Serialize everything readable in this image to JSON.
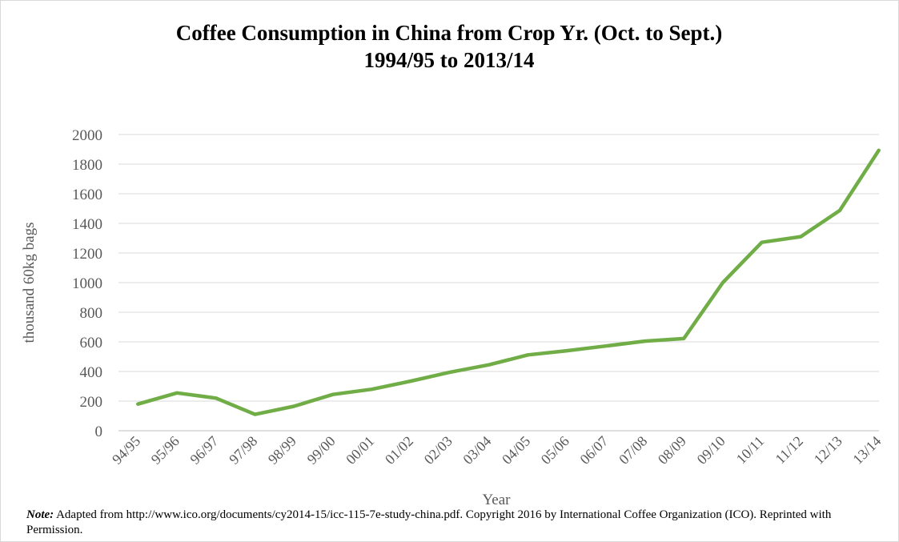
{
  "chart_data": {
    "type": "line",
    "title": "Coffee Consumption in China from Crop Yr. (Oct. to Sept.)",
    "subtitle": "1994/95 to 2013/14",
    "x_label": "Year",
    "y_label": "thousand 60kg bags",
    "categories": [
      "94/95",
      "95/96",
      "96/97",
      "97/98",
      "98/99",
      "99/00",
      "00/01",
      "01/02",
      "02/03",
      "03/04",
      "04/05",
      "05/06",
      "06/07",
      "07/08",
      "08/09",
      "09/10",
      "10/11",
      "11/12",
      "12/13",
      "13/14"
    ],
    "values": [
      180,
      255,
      220,
      110,
      165,
      245,
      280,
      335,
      395,
      445,
      512,
      540,
      572,
      605,
      622,
      1000,
      1272,
      1310,
      1487,
      1893
    ],
    "color": "#70ad47",
    "ylim": [
      0,
      2000
    ],
    "yticks": [
      0,
      200,
      400,
      600,
      800,
      1000,
      1200,
      1400,
      1600,
      1800,
      2000
    ],
    "grid": true
  },
  "note_label": "Note:",
  "note": "Adapted from http://www.ico.org/documents/cy2014-15/icc-115-7e-study-china.pdf. Copyright 2016 by International Coffee Organization (ICO). Reprinted with Permission."
}
